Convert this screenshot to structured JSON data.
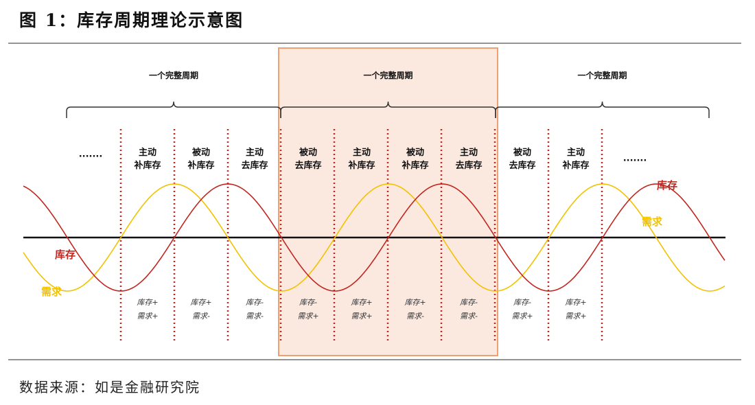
{
  "title": "图 1：库存周期理论示意图",
  "source": "数据来源：如是金融研究院",
  "cycle_label": "一个完整周期",
  "cycles": [
    "一个完整周期",
    "一个完整周期",
    "一个完整周期"
  ],
  "ellipsis": [
    "·······",
    "·······"
  ],
  "phases": [
    {
      "l1": "主动",
      "l2": "补库存",
      "inv": "库存+",
      "dem": "需求+"
    },
    {
      "l1": "被动",
      "l2": "补库存",
      "inv": "库存+",
      "dem": "需求-"
    },
    {
      "l1": "主动",
      "l2": "去库存",
      "inv": "库存-",
      "dem": "需求-"
    },
    {
      "l1": "被动",
      "l2": "去库存",
      "inv": "库存-",
      "dem": "需求+"
    },
    {
      "l1": "主动",
      "l2": "补库存",
      "inv": "库存+",
      "dem": "需求+"
    },
    {
      "l1": "被动",
      "l2": "补库存",
      "inv": "库存+",
      "dem": "需求-"
    },
    {
      "l1": "主动",
      "l2": "去库存",
      "inv": "库存-",
      "dem": "需求-"
    },
    {
      "l1": "被动",
      "l2": "去库存",
      "inv": "库存-",
      "dem": "需求+"
    },
    {
      "l1": "主动",
      "l2": "补库存",
      "inv": "库存+",
      "dem": "需求+"
    }
  ],
  "series": {
    "inventory": {
      "name": "库存",
      "color": "#c0261e"
    },
    "demand": {
      "name": "需求",
      "color": "#f2c200"
    }
  },
  "colors": {
    "highlight_fill": "#fbe9e0",
    "highlight_border": "#f0a070",
    "divider": "#c0261e"
  }
}
